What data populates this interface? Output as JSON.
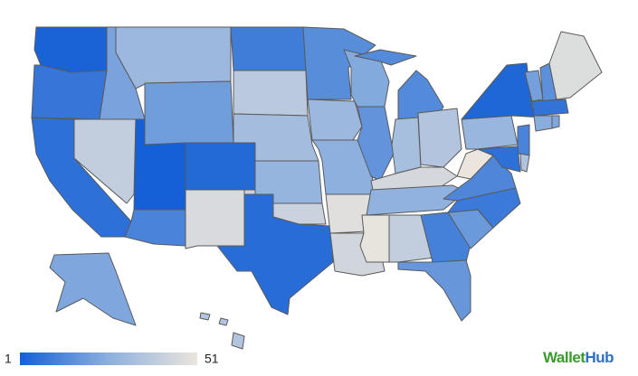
{
  "chart_data": {
    "type": "choropleth",
    "values": [
      2,
      8,
      6,
      40,
      22,
      30,
      20,
      1,
      4,
      12,
      46,
      10,
      38,
      32,
      28,
      42,
      5,
      15,
      30,
      26,
      48,
      44,
      24,
      17,
      14,
      33,
      36,
      45,
      27,
      50,
      40,
      11,
      18,
      19,
      9,
      13,
      51,
      29,
      3,
      12,
      6,
      35,
      21,
      16,
      47,
      7,
      25,
      23,
      23,
      36
    ],
    "scale": {
      "min": 1,
      "max": 51,
      "colors": [
        "#1560d6",
        "#8db0de",
        "#ebe5dd"
      ]
    }
  },
  "logo": [
    "Wallet",
    "Hub"
  ]
}
